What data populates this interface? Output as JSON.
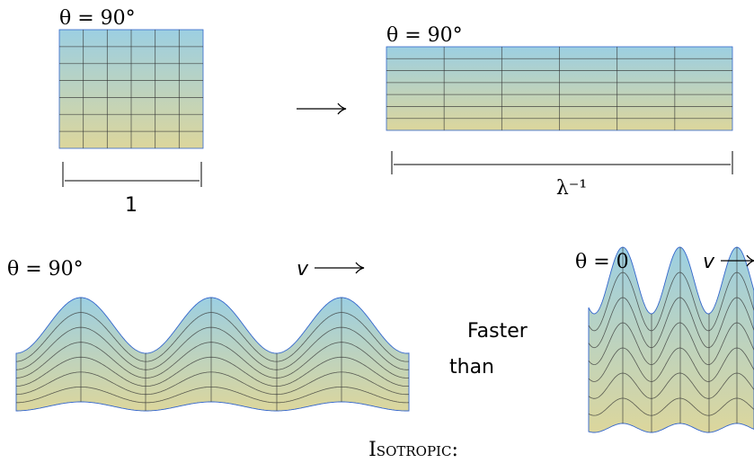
{
  "panels": [
    {
      "label": "θ = 90°",
      "scale_label": "1"
    },
    {
      "label": "θ = 90°",
      "scale_label": "λ⁻¹"
    }
  ],
  "waves": [
    {
      "label": "θ = 90°",
      "velocity": "v"
    },
    {
      "label": "θ = 0",
      "velocity": "v"
    }
  ],
  "comparison": {
    "line1": "Faster",
    "line2": "than"
  },
  "caption": "Isotropic:"
}
